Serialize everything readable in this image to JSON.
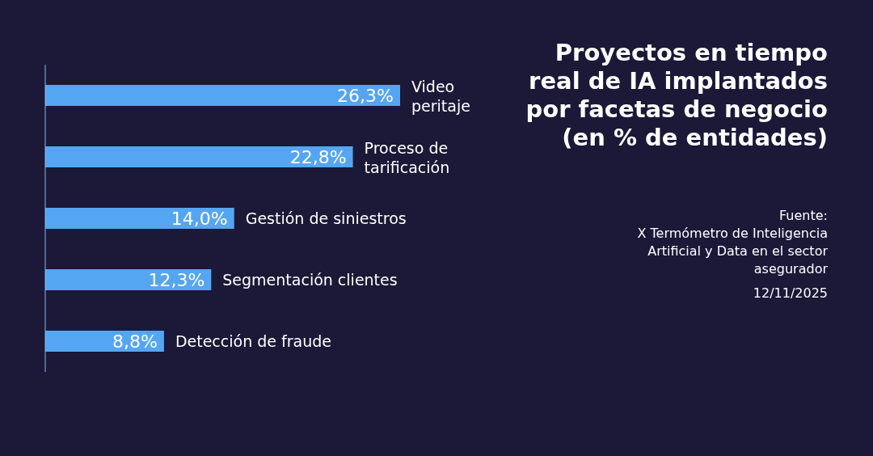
{
  "chart_data": {
    "type": "bar",
    "orientation": "horizontal",
    "title": "Proyectos en tiempo real de IA implantados por facetas de negocio (en % de entidades)",
    "categories": [
      "Video peritaje",
      "Proceso de tarificación",
      "Gestión de siniestros",
      "Segmentación clientes",
      "Detección de fraude"
    ],
    "values": [
      26.3,
      22.8,
      14.0,
      12.3,
      8.8
    ],
    "value_labels": [
      "26,3%",
      "22,8%",
      "14,0%",
      "12,3%",
      "8,8%"
    ],
    "color": "#55a6f2",
    "annotations": [
      "Fuente:\nX Termómetro de Inteligencia Artificial y Data en el sector asegurador",
      "12/11/2025"
    ]
  }
}
